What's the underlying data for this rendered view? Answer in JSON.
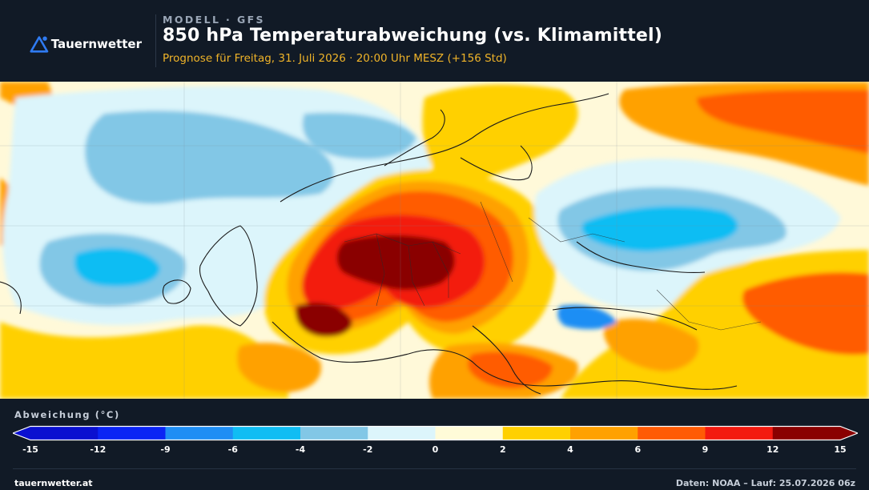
{
  "header": {
    "logo_text": "Tauernwetter",
    "kicker": "MODELL · GFS",
    "title": "850 hPa Temperaturabweichung (vs. Klimamittel)",
    "subtitle": "Prognose für Freitag, 31. Juli 2026 · 20:00 Uhr MESZ  (+156 Std)"
  },
  "map": {
    "icon": "weather-map"
  },
  "legend": {
    "title": "Abweichung (°C)",
    "ticks": [
      "-15",
      "-12",
      "-9",
      "-6",
      "-4",
      "-2",
      "0",
      "2",
      "4",
      "6",
      "9",
      "12",
      "15"
    ],
    "bins": [
      {
        "from": -15,
        "to": -12,
        "color": "#0a10d0"
      },
      {
        "from": -12,
        "to": -9,
        "color": "#0b24f4"
      },
      {
        "from": -9,
        "to": -6,
        "color": "#1f8ef4"
      },
      {
        "from": -6,
        "to": -4,
        "color": "#10bdf3"
      },
      {
        "from": -4,
        "to": -2,
        "color": "#82c7e6"
      },
      {
        "from": -2,
        "to": 0,
        "color": "#dcf5fb"
      },
      {
        "from": 0,
        "to": 2,
        "color": "#fffbd8"
      },
      {
        "from": 2,
        "to": 4,
        "color": "#ffd000"
      },
      {
        "from": 4,
        "to": 6,
        "color": "#ffa100"
      },
      {
        "from": 6,
        "to": 9,
        "color": "#ff5b05"
      },
      {
        "from": 9,
        "to": 12,
        "color": "#f31a10"
      },
      {
        "from": 12,
        "to": 15,
        "color": "#8a0000"
      }
    ]
  },
  "footer": {
    "left": "tauernwetter.at",
    "right": "Daten: NOAA – Lauf: 25.07.2026 06z"
  }
}
